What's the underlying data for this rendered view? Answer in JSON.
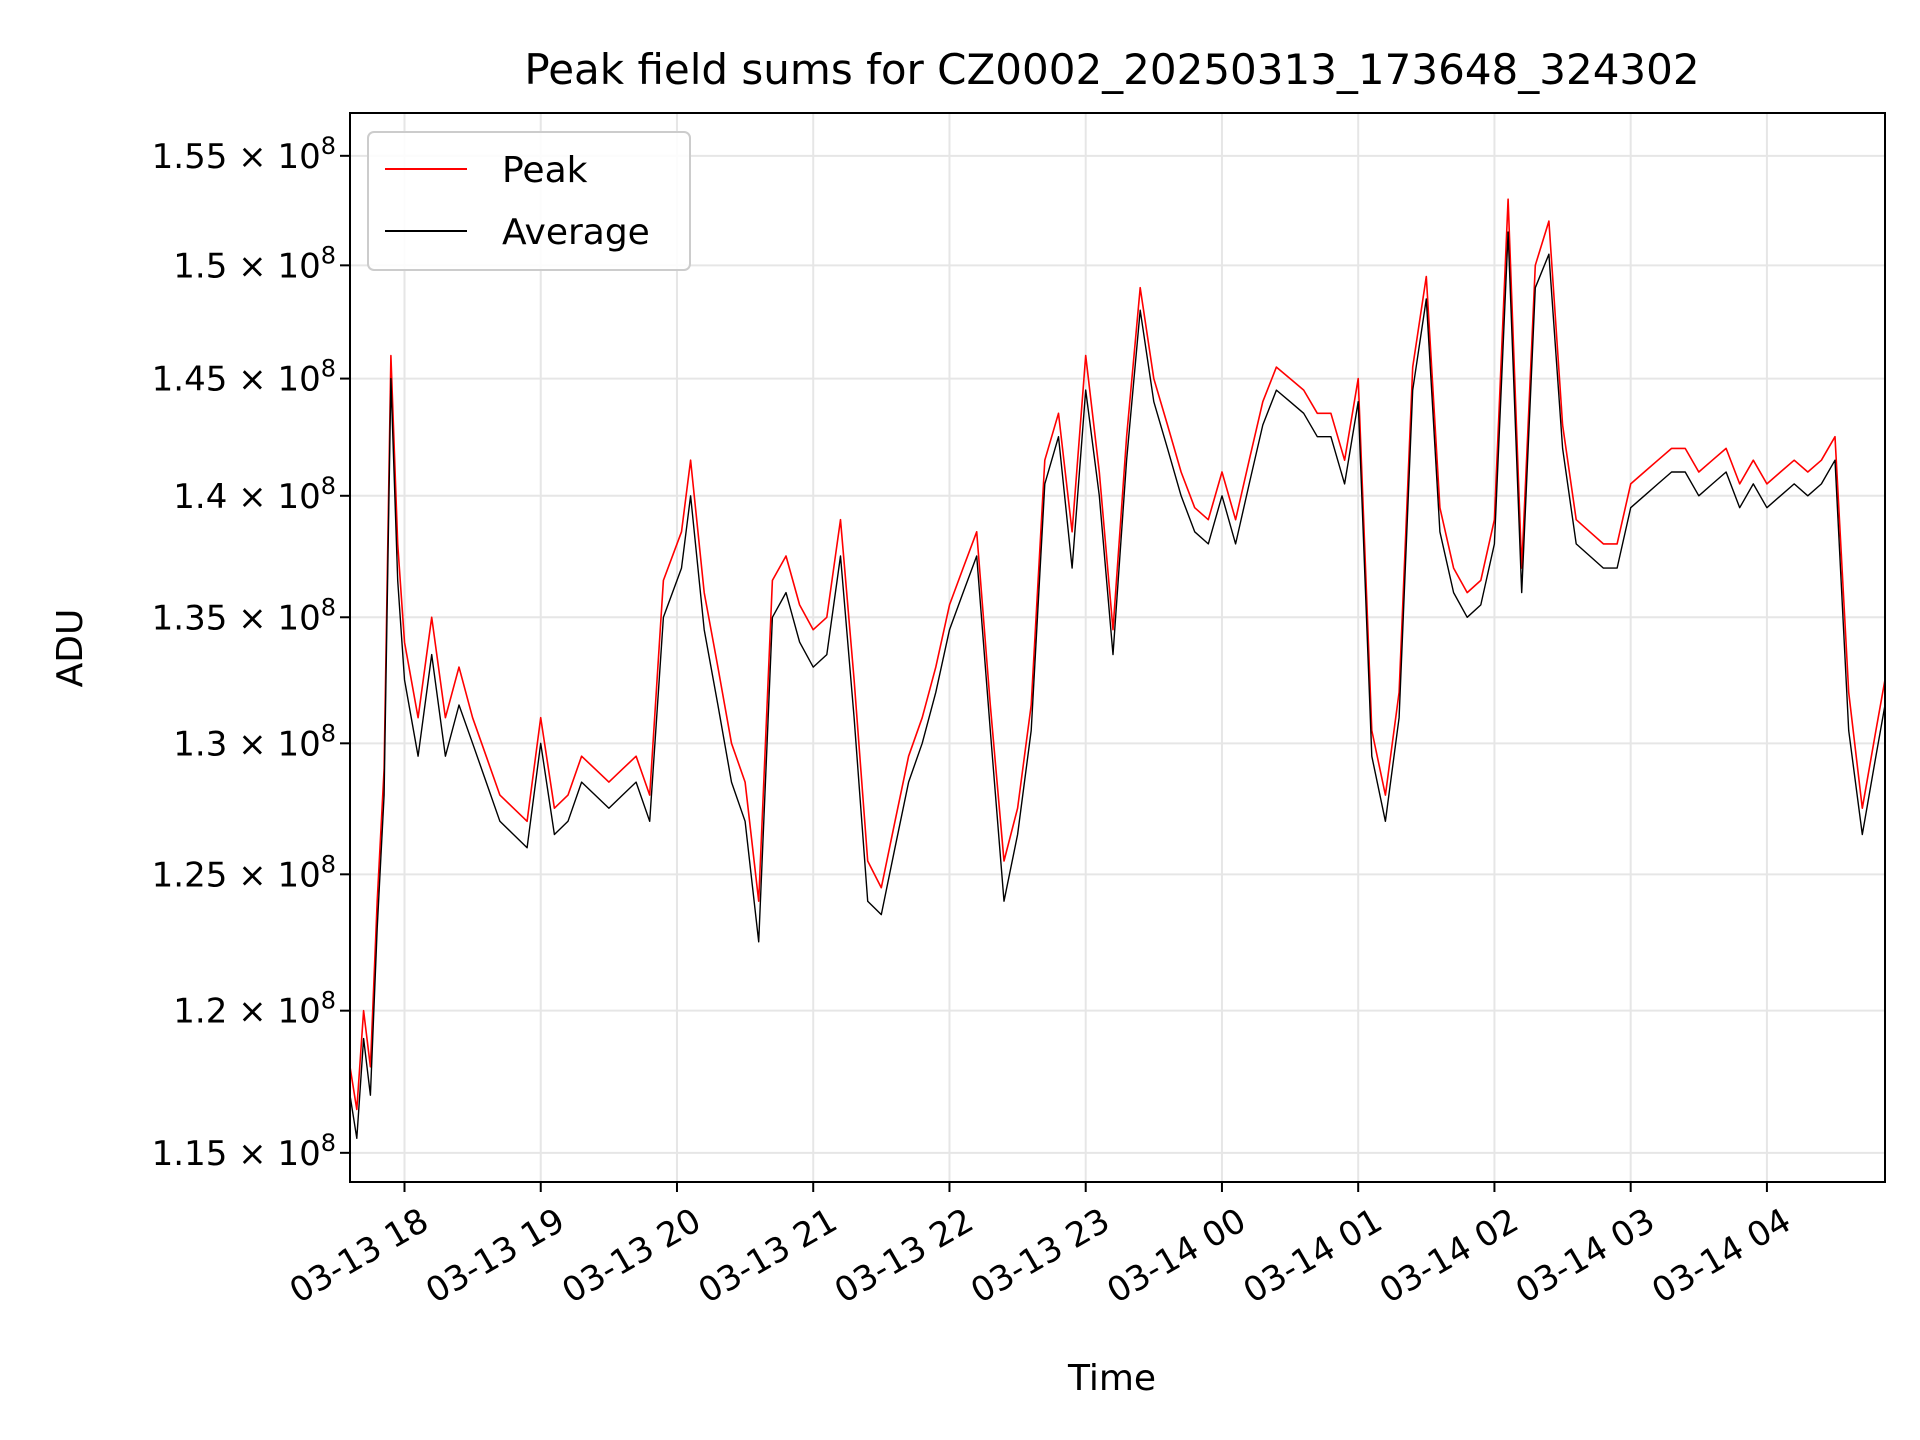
{
  "chart_data": {
    "type": "line",
    "title": "Peak field sums for CZ0002_20250313_173648_324302",
    "xlabel": "Time",
    "ylabel": "ADU",
    "x_ticks": [
      "03-13 18",
      "03-13 19",
      "03-13 20",
      "03-13 21",
      "03-13 22",
      "03-13 23",
      "03-14 00",
      "03-14 01",
      "03-14 02",
      "03-14 03",
      "03-14 04"
    ],
    "y_ticks": [
      {
        "value": 115000000,
        "mantissa": "1.15",
        "exponent": "8"
      },
      {
        "value": 120000000,
        "mantissa": "1.2",
        "exponent": "8"
      },
      {
        "value": 125000000,
        "mantissa": "1.25",
        "exponent": "8"
      },
      {
        "value": 130000000,
        "mantissa": "1.3",
        "exponent": "8"
      },
      {
        "value": 135000000,
        "mantissa": "1.35",
        "exponent": "8"
      },
      {
        "value": 140000000,
        "mantissa": "1.4",
        "exponent": "8"
      },
      {
        "value": 145000000,
        "mantissa": "1.45",
        "exponent": "8"
      },
      {
        "value": 150000000,
        "mantissa": "1.5",
        "exponent": "8"
      },
      {
        "value": 155000000,
        "mantissa": "1.55",
        "exponent": "8"
      }
    ],
    "y_scale": "log",
    "xlim": [
      "2025-03-13 17:36",
      "2025-03-14 04:52"
    ],
    "ylim": [
      114000000,
      157000000
    ],
    "grid": true,
    "legend_position": "upper-left",
    "series": [
      {
        "name": "Peak",
        "color": "#ff0000",
        "x": [
          "2025-03-13 17:36",
          "2025-03-13 17:39",
          "2025-03-13 17:42",
          "2025-03-13 17:45",
          "2025-03-13 17:48",
          "2025-03-13 17:51",
          "2025-03-13 17:54",
          "2025-03-13 17:57",
          "2025-03-13 18:00",
          "2025-03-13 18:06",
          "2025-03-13 18:12",
          "2025-03-13 18:18",
          "2025-03-13 18:24",
          "2025-03-13 18:30",
          "2025-03-13 18:36",
          "2025-03-13 18:42",
          "2025-03-13 18:48",
          "2025-03-13 18:54",
          "2025-03-13 19:00",
          "2025-03-13 19:06",
          "2025-03-13 19:12",
          "2025-03-13 19:18",
          "2025-03-13 19:24",
          "2025-03-13 19:30",
          "2025-03-13 19:36",
          "2025-03-13 19:42",
          "2025-03-13 19:48",
          "2025-03-13 19:54",
          "2025-03-13 20:02",
          "2025-03-13 20:06",
          "2025-03-13 20:12",
          "2025-03-13 20:18",
          "2025-03-13 20:24",
          "2025-03-13 20:30",
          "2025-03-13 20:36",
          "2025-03-13 20:42",
          "2025-03-13 20:48",
          "2025-03-13 20:54",
          "2025-03-13 21:00",
          "2025-03-13 21:06",
          "2025-03-13 21:12",
          "2025-03-13 21:18",
          "2025-03-13 21:24",
          "2025-03-13 21:30",
          "2025-03-13 21:36",
          "2025-03-13 21:42",
          "2025-03-13 21:48",
          "2025-03-13 21:54",
          "2025-03-13 22:00",
          "2025-03-13 22:06",
          "2025-03-13 22:12",
          "2025-03-13 22:18",
          "2025-03-13 22:24",
          "2025-03-13 22:30",
          "2025-03-13 22:36",
          "2025-03-13 22:42",
          "2025-03-13 22:48",
          "2025-03-13 22:54",
          "2025-03-13 23:00",
          "2025-03-13 23:06",
          "2025-03-13 23:12",
          "2025-03-13 23:18",
          "2025-03-13 23:24",
          "2025-03-13 23:30",
          "2025-03-13 23:36",
          "2025-03-13 23:42",
          "2025-03-13 23:48",
          "2025-03-13 23:54",
          "2025-03-14 00:00",
          "2025-03-14 00:06",
          "2025-03-14 00:12",
          "2025-03-14 00:18",
          "2025-03-14 00:24",
          "2025-03-14 00:30",
          "2025-03-14 00:36",
          "2025-03-14 00:42",
          "2025-03-14 00:48",
          "2025-03-14 00:54",
          "2025-03-14 01:00",
          "2025-03-14 01:06",
          "2025-03-14 01:12",
          "2025-03-14 01:18",
          "2025-03-14 01:24",
          "2025-03-14 01:30",
          "2025-03-14 01:36",
          "2025-03-14 01:42",
          "2025-03-14 01:48",
          "2025-03-14 01:54",
          "2025-03-14 02:00",
          "2025-03-14 02:06",
          "2025-03-14 02:12",
          "2025-03-14 02:18",
          "2025-03-14 02:24",
          "2025-03-14 02:30",
          "2025-03-14 02:36",
          "2025-03-14 02:42",
          "2025-03-14 02:48",
          "2025-03-14 02:54",
          "2025-03-14 03:00",
          "2025-03-14 03:06",
          "2025-03-14 03:12",
          "2025-03-14 03:18",
          "2025-03-14 03:24",
          "2025-03-14 03:30",
          "2025-03-14 03:36",
          "2025-03-14 03:42",
          "2025-03-14 03:48",
          "2025-03-14 03:54",
          "2025-03-14 04:00",
          "2025-03-14 04:06",
          "2025-03-14 04:12",
          "2025-03-14 04:18",
          "2025-03-14 04:24",
          "2025-03-14 04:30",
          "2025-03-14 04:36",
          "2025-03-14 04:42",
          "2025-03-14 04:48",
          "2025-03-14 04:52"
        ],
        "values": [
          118000000,
          116500000,
          120000000,
          118000000,
          124000000,
          129000000,
          146000000,
          138000000,
          134000000,
          131000000,
          135000000,
          131000000,
          133000000,
          131000000,
          129500000,
          128000000,
          127500000,
          127000000,
          131000000,
          127500000,
          128000000,
          129500000,
          129000000,
          128500000,
          129000000,
          129500000,
          128000000,
          136500000,
          138500000,
          141500000,
          136000000,
          133000000,
          130000000,
          128500000,
          124000000,
          136500000,
          137500000,
          135500000,
          134500000,
          135000000,
          139000000,
          132500000,
          125500000,
          124500000,
          127000000,
          129500000,
          131000000,
          133000000,
          135500000,
          137000000,
          138500000,
          131500000,
          125500000,
          127500000,
          131500000,
          141500000,
          143500000,
          138500000,
          146000000,
          141000000,
          134500000,
          142500000,
          149000000,
          145000000,
          143000000,
          141000000,
          139500000,
          139000000,
          141000000,
          139000000,
          141500000,
          144000000,
          145500000,
          145000000,
          144500000,
          143500000,
          143500000,
          141500000,
          145000000,
          130500000,
          128000000,
          132000000,
          145500000,
          149500000,
          139500000,
          137000000,
          136000000,
          136500000,
          139000000,
          153000000,
          137000000,
          150000000,
          152000000,
          143000000,
          139000000,
          138500000,
          138000000,
          138000000,
          140500000,
          141000000,
          141500000,
          142000000,
          142000000,
          141000000,
          141500000,
          142000000,
          140500000,
          141500000,
          140500000,
          141000000,
          141500000,
          141000000,
          141500000,
          142500000,
          132000000,
          127500000,
          130500000,
          132500000
        ]
      },
      {
        "name": "Average",
        "color": "#000000",
        "x": [
          "2025-03-13 17:36",
          "2025-03-13 17:39",
          "2025-03-13 17:42",
          "2025-03-13 17:45",
          "2025-03-13 17:48",
          "2025-03-13 17:51",
          "2025-03-13 17:54",
          "2025-03-13 17:57",
          "2025-03-13 18:00",
          "2025-03-13 18:06",
          "2025-03-13 18:12",
          "2025-03-13 18:18",
          "2025-03-13 18:24",
          "2025-03-13 18:30",
          "2025-03-13 18:36",
          "2025-03-13 18:42",
          "2025-03-13 18:48",
          "2025-03-13 18:54",
          "2025-03-13 19:00",
          "2025-03-13 19:06",
          "2025-03-13 19:12",
          "2025-03-13 19:18",
          "2025-03-13 19:24",
          "2025-03-13 19:30",
          "2025-03-13 19:36",
          "2025-03-13 19:42",
          "2025-03-13 19:48",
          "2025-03-13 19:54",
          "2025-03-13 20:02",
          "2025-03-13 20:06",
          "2025-03-13 20:12",
          "2025-03-13 20:18",
          "2025-03-13 20:24",
          "2025-03-13 20:30",
          "2025-03-13 20:36",
          "2025-03-13 20:42",
          "2025-03-13 20:48",
          "2025-03-13 20:54",
          "2025-03-13 21:00",
          "2025-03-13 21:06",
          "2025-03-13 21:12",
          "2025-03-13 21:18",
          "2025-03-13 21:24",
          "2025-03-13 21:30",
          "2025-03-13 21:36",
          "2025-03-13 21:42",
          "2025-03-13 21:48",
          "2025-03-13 21:54",
          "2025-03-13 22:00",
          "2025-03-13 22:06",
          "2025-03-13 22:12",
          "2025-03-13 22:18",
          "2025-03-13 22:24",
          "2025-03-13 22:30",
          "2025-03-13 22:36",
          "2025-03-13 22:42",
          "2025-03-13 22:48",
          "2025-03-13 22:54",
          "2025-03-13 23:00",
          "2025-03-13 23:06",
          "2025-03-13 23:12",
          "2025-03-13 23:18",
          "2025-03-13 23:24",
          "2025-03-13 23:30",
          "2025-03-13 23:36",
          "2025-03-13 23:42",
          "2025-03-13 23:48",
          "2025-03-13 23:54",
          "2025-03-14 00:00",
          "2025-03-14 00:06",
          "2025-03-14 00:12",
          "2025-03-14 00:18",
          "2025-03-14 00:24",
          "2025-03-14 00:30",
          "2025-03-14 00:36",
          "2025-03-14 00:42",
          "2025-03-14 00:48",
          "2025-03-14 00:54",
          "2025-03-14 01:00",
          "2025-03-14 01:06",
          "2025-03-14 01:12",
          "2025-03-14 01:18",
          "2025-03-14 01:24",
          "2025-03-14 01:30",
          "2025-03-14 01:36",
          "2025-03-14 01:42",
          "2025-03-14 01:48",
          "2025-03-14 01:54",
          "2025-03-14 02:00",
          "2025-03-14 02:06",
          "2025-03-14 02:12",
          "2025-03-14 02:18",
          "2025-03-14 02:24",
          "2025-03-14 02:30",
          "2025-03-14 02:36",
          "2025-03-14 02:42",
          "2025-03-14 02:48",
          "2025-03-14 02:54",
          "2025-03-14 03:00",
          "2025-03-14 03:06",
          "2025-03-14 03:12",
          "2025-03-14 03:18",
          "2025-03-14 03:24",
          "2025-03-14 03:30",
          "2025-03-14 03:36",
          "2025-03-14 03:42",
          "2025-03-14 03:48",
          "2025-03-14 03:54",
          "2025-03-14 04:00",
          "2025-03-14 04:06",
          "2025-03-14 04:12",
          "2025-03-14 04:18",
          "2025-03-14 04:24",
          "2025-03-14 04:30",
          "2025-03-14 04:36",
          "2025-03-14 04:42",
          "2025-03-14 04:48",
          "2025-03-14 04:52"
        ],
        "values": [
          117000000,
          115500000,
          119000000,
          117000000,
          123000000,
          128000000,
          145000000,
          136500000,
          132500000,
          129500000,
          133500000,
          129500000,
          131500000,
          130000000,
          128500000,
          127000000,
          126500000,
          126000000,
          130000000,
          126500000,
          127000000,
          128500000,
          128000000,
          127500000,
          128000000,
          128500000,
          127000000,
          135000000,
          137000000,
          140000000,
          134500000,
          131500000,
          128500000,
          127000000,
          122500000,
          135000000,
          136000000,
          134000000,
          133000000,
          133500000,
          137500000,
          131000000,
          124000000,
          123500000,
          126000000,
          128500000,
          130000000,
          132000000,
          134500000,
          136000000,
          137500000,
          130500000,
          124000000,
          126500000,
          130500000,
          140500000,
          142500000,
          137000000,
          144500000,
          140000000,
          133500000,
          141500000,
          148000000,
          144000000,
          142000000,
          140000000,
          138500000,
          138000000,
          140000000,
          138000000,
          140500000,
          143000000,
          144500000,
          144000000,
          143500000,
          142500000,
          142500000,
          140500000,
          144000000,
          129500000,
          127000000,
          131000000,
          144500000,
          148500000,
          138500000,
          136000000,
          135000000,
          135500000,
          138000000,
          151500000,
          136000000,
          149000000,
          150500000,
          142000000,
          138000000,
          137500000,
          137000000,
          137000000,
          139500000,
          140000000,
          140500000,
          141000000,
          141000000,
          140000000,
          140500000,
          141000000,
          139500000,
          140500000,
          139500000,
          140000000,
          140500000,
          140000000,
          140500000,
          141500000,
          130500000,
          126500000,
          129500000,
          131500000
        ]
      }
    ]
  }
}
